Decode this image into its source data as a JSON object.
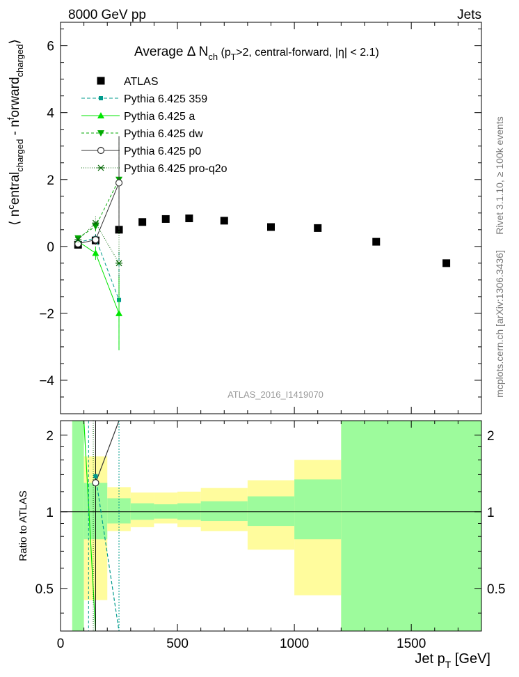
{
  "header": {
    "left": "8000 GeV pp",
    "right": "Jets"
  },
  "side_labels": {
    "rivet": "Rivet 3.1.10, ≥ 100k events",
    "mcplots": "mcplots.cern.ch [arXiv:1306.3436]"
  },
  "analysis_id": "ATLAS_2016_I1419070",
  "colors": {
    "atlas": "#000000",
    "p359": "#009b8c",
    "pa": "#00e600",
    "pdw": "#00aa00",
    "pp0": "#333333",
    "pq2o": "#006600",
    "band_green": "#9dfb9c",
    "band_yellow": "#fffc9d"
  },
  "chart_data": [
    {
      "type": "scatter",
      "panel": "main",
      "title_main": "Average Δ N",
      "title_sub": "ch",
      "title_rest": " (p",
      "title_sub2": "T",
      "title_tail": ">2, central-forward, |η| < 2.1)",
      "ylabel": "⟨ n^central_charged - n^forward_charged ⟩",
      "ylabel_parts": {
        "open": "⟨ n",
        "sup1": "c",
        "mid1": "entral",
        "sub1": "charged",
        "mid2": " - n",
        "sup2": "f",
        "mid3": "orward",
        "sub2": "charged",
        "close": "⟩"
      },
      "xlim": [
        0,
        1800
      ],
      "ylim": [
        -5,
        6.7
      ],
      "yticks": [
        -4,
        -2,
        0,
        2,
        4,
        6
      ],
      "ytick_labels": [
        "−4",
        "−2",
        "0",
        "2",
        "4",
        "6"
      ],
      "series": [
        {
          "name": "ATLAS",
          "key": "atlas",
          "marker": "square",
          "x": [
            75,
            150,
            250,
            350,
            450,
            550,
            700,
            900,
            1100,
            1350,
            1650
          ],
          "y": [
            0.05,
            0.18,
            0.5,
            0.73,
            0.82,
            0.84,
            0.77,
            0.58,
            0.55,
            0.14,
            -0.5
          ]
        },
        {
          "name": "Pythia 6.425 359",
          "key": "p359",
          "marker": "smallsquare",
          "dash": "5,3",
          "x": [
            75,
            150,
            250
          ],
          "y": [
            0.12,
            0.25,
            -1.6
          ],
          "err": [
            0.08,
            0.15,
            1.5
          ]
        },
        {
          "name": "Pythia 6.425 a",
          "key": "pa",
          "marker": "triangle-up",
          "dash": "",
          "x": [
            75,
            150,
            250
          ],
          "y": [
            0.15,
            -0.2,
            -2.0
          ],
          "err": [
            0.08,
            0.2,
            1.1
          ]
        },
        {
          "name": "Pythia 6.425 dw",
          "key": "pdw",
          "marker": "triangle-down",
          "dash": "4,3",
          "x": [
            75,
            150,
            250
          ],
          "y": [
            0.25,
            0.6,
            2.0
          ],
          "err": [
            0.08,
            0.15,
            1.3
          ]
        },
        {
          "name": "Pythia 6.425 p0",
          "key": "pp0",
          "marker": "circle",
          "dash": "",
          "x": [
            75,
            150,
            250
          ],
          "y": [
            0.08,
            0.2,
            1.9
          ],
          "err": [
            0.08,
            0.15,
            1.4
          ]
        },
        {
          "name": "Pythia 6.425 pro-q2o",
          "key": "pq2o",
          "marker": "star",
          "dash": "1,2",
          "x": [
            75,
            150,
            250
          ],
          "y": [
            0.2,
            0.7,
            -0.5
          ],
          "err": [
            0.08,
            0.2,
            1.0
          ]
        }
      ]
    },
    {
      "type": "band",
      "panel": "ratio",
      "ylabel": "Ratio to ATLAS",
      "xlabel_main": "Jet p",
      "xlabel_sub": "T",
      "xlabel_unit": " [GeV]",
      "xlim": [
        0,
        1800
      ],
      "ylim": [
        0.34,
        2.28
      ],
      "yticks": [
        0.5,
        1,
        2
      ],
      "ytick_labels": [
        "0.5",
        "1",
        "2"
      ],
      "xticks": [
        0,
        500,
        1000,
        1500
      ],
      "xtick_labels": [
        "0",
        "500",
        "1000",
        "1500"
      ],
      "bins": [
        {
          "lo": 50,
          "hi": 100,
          "y_lo": 0.34,
          "y_hi": 2.28,
          "g_lo": 0.34,
          "g_hi": 2.28
        },
        {
          "lo": 100,
          "hi": 200,
          "y_lo": 0.45,
          "y_hi": 1.65,
          "g_lo": 0.78,
          "g_hi": 1.3
        },
        {
          "lo": 200,
          "hi": 300,
          "y_lo": 0.84,
          "y_hi": 1.25,
          "g_lo": 0.9,
          "g_hi": 1.13
        },
        {
          "lo": 300,
          "hi": 400,
          "y_lo": 0.87,
          "y_hi": 1.19,
          "g_lo": 0.93,
          "g_hi": 1.08
        },
        {
          "lo": 400,
          "hi": 500,
          "y_lo": 0.9,
          "y_hi": 1.19,
          "g_lo": 0.94,
          "g_hi": 1.07
        },
        {
          "lo": 500,
          "hi": 600,
          "y_lo": 0.87,
          "y_hi": 1.2,
          "g_lo": 0.93,
          "g_hi": 1.08
        },
        {
          "lo": 600,
          "hi": 800,
          "y_lo": 0.84,
          "y_hi": 1.24,
          "g_lo": 0.92,
          "g_hi": 1.1
        },
        {
          "lo": 800,
          "hi": 1000,
          "y_lo": 0.71,
          "y_hi": 1.33,
          "g_lo": 0.88,
          "g_hi": 1.15
        },
        {
          "lo": 1000,
          "hi": 1200,
          "y_lo": 0.47,
          "y_hi": 1.6,
          "g_lo": 0.78,
          "g_hi": 1.34
        },
        {
          "lo": 1200,
          "hi": 1800,
          "y_lo": 0.34,
          "y_hi": 2.28,
          "g_lo": 0.34,
          "g_hi": 2.28
        }
      ],
      "ratio_series": [
        {
          "key": "p359",
          "x": [
            150,
            250
          ],
          "y": [
            1.38,
            0.34
          ]
        },
        {
          "key": "pa",
          "x": [
            100,
            150
          ],
          "y": [
            2.28,
            0.34
          ]
        },
        {
          "key": "pp0",
          "x": [
            150,
            250
          ],
          "y": [
            1.3,
            2.28
          ]
        }
      ]
    }
  ]
}
